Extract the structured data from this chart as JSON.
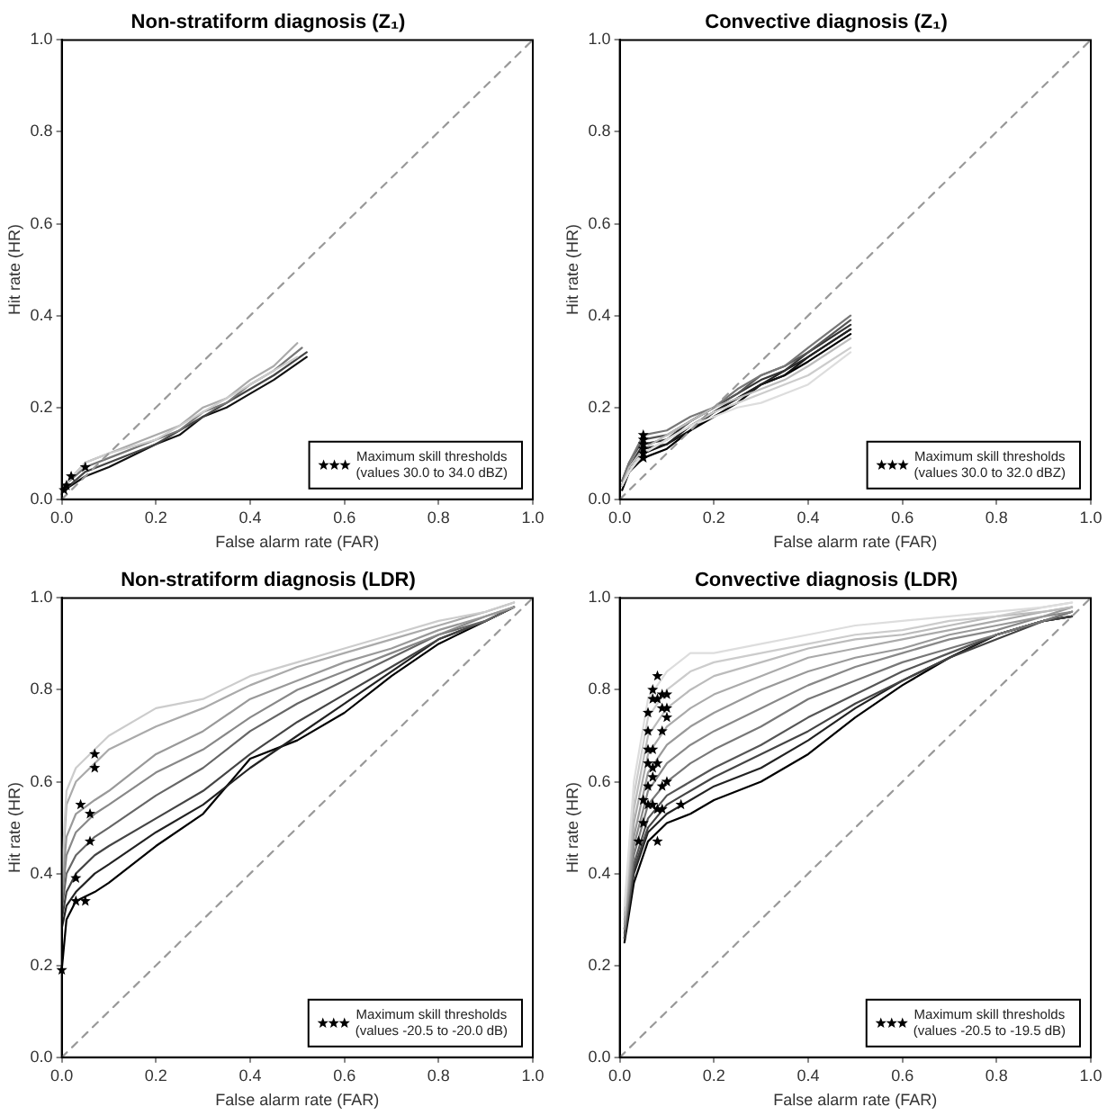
{
  "chart_data": [
    {
      "type": "line",
      "title": "Non-stratiform diagnosis (Z₁)",
      "xlabel": "False alarm rate (FAR)",
      "ylabel": "Hit rate (HR)",
      "xlim": [
        0,
        1
      ],
      "ylim": [
        0,
        1
      ],
      "xticks": [
        {
          "value": 0,
          "label": "0.0"
        },
        {
          "value": 0.2,
          "label": "0.2"
        },
        {
          "value": 0.4,
          "label": "0.4"
        },
        {
          "value": 0.6,
          "label": "0.6"
        },
        {
          "value": 0.8,
          "label": "0.8"
        },
        {
          "value": 1,
          "label": "1.0"
        }
      ],
      "yticks": [
        {
          "value": 0,
          "label": "0.0"
        },
        {
          "value": 0.2,
          "label": "0.2"
        },
        {
          "value": 0.4,
          "label": "0.4"
        },
        {
          "value": 0.6,
          "label": "0.6"
        },
        {
          "value": 0.8,
          "label": "0.8"
        },
        {
          "value": 1,
          "label": "1.0"
        }
      ],
      "grid": false,
      "legend": "bottom right",
      "series": [
        {
          "type": "line",
          "color": "#999999",
          "line_style": "dashed",
          "x": [
            0,
            1
          ],
          "values": [
            0,
            1
          ]
        },
        {
          "type": "line",
          "color": "#cccccc",
          "x": [
            0.005,
            0.05,
            0.1,
            0.2,
            0.25,
            0.3,
            0.35,
            0.4,
            0.45,
            0.5
          ],
          "values": [
            0.03,
            0.08,
            0.1,
            0.13,
            0.16,
            0.19,
            0.22,
            0.25,
            0.28,
            0.31
          ]
        },
        {
          "type": "line",
          "color": "#aaaaaa",
          "x": [
            0.005,
            0.05,
            0.1,
            0.2,
            0.25,
            0.3,
            0.35,
            0.4,
            0.45,
            0.5
          ],
          "values": [
            0.03,
            0.08,
            0.1,
            0.14,
            0.16,
            0.2,
            0.22,
            0.26,
            0.29,
            0.34
          ]
        },
        {
          "type": "line",
          "color": "#777777",
          "x": [
            0.005,
            0.05,
            0.1,
            0.2,
            0.25,
            0.3,
            0.35,
            0.4,
            0.45,
            0.51
          ],
          "values": [
            0.03,
            0.07,
            0.09,
            0.13,
            0.15,
            0.19,
            0.21,
            0.25,
            0.28,
            0.33
          ]
        },
        {
          "type": "line",
          "color": "#444444",
          "x": [
            0.005,
            0.05,
            0.1,
            0.2,
            0.25,
            0.3,
            0.35,
            0.4,
            0.45,
            0.52
          ],
          "values": [
            0.02,
            0.06,
            0.08,
            0.12,
            0.15,
            0.18,
            0.21,
            0.24,
            0.27,
            0.32
          ]
        },
        {
          "type": "line",
          "color": "#111111",
          "x": [
            0.005,
            0.05,
            0.1,
            0.2,
            0.25,
            0.3,
            0.35,
            0.4,
            0.45,
            0.52
          ],
          "values": [
            0.02,
            0.05,
            0.07,
            0.12,
            0.14,
            0.18,
            0.2,
            0.23,
            0.26,
            0.31
          ]
        },
        {
          "type": "scatter",
          "name": "Maximum skill thresholds (values 30.0 to 34.0 dBZ)",
          "color": "#000000",
          "marker": "star",
          "x": [
            0.005,
            0.01,
            0.02,
            0.05
          ],
          "values": [
            0.02,
            0.03,
            0.05,
            0.07
          ]
        }
      ]
    },
    {
      "type": "line",
      "title": "Convective diagnosis (Z₁)",
      "xlabel": "False alarm rate (FAR)",
      "ylabel": "Hit rate (HR)",
      "xlim": [
        0,
        1
      ],
      "ylim": [
        0,
        1
      ],
      "xticks": [
        {
          "value": 0,
          "label": "0.0"
        },
        {
          "value": 0.2,
          "label": "0.2"
        },
        {
          "value": 0.4,
          "label": "0.4"
        },
        {
          "value": 0.6,
          "label": "0.6"
        },
        {
          "value": 0.8,
          "label": "0.8"
        },
        {
          "value": 1,
          "label": "1.0"
        }
      ],
      "yticks": [
        {
          "value": 0,
          "label": "0.0"
        },
        {
          "value": 0.2,
          "label": "0.2"
        },
        {
          "value": 0.4,
          "label": "0.4"
        },
        {
          "value": 0.6,
          "label": "0.6"
        },
        {
          "value": 0.8,
          "label": "0.8"
        },
        {
          "value": 1,
          "label": "1.0"
        }
      ],
      "grid": false,
      "legend": "bottom right",
      "series": [
        {
          "type": "line",
          "color": "#999999",
          "line_style": "dashed",
          "x": [
            0,
            1
          ],
          "values": [
            0,
            1
          ]
        },
        {
          "type": "line",
          "color": "#dddddd",
          "x": [
            0.005,
            0.02,
            0.05,
            0.1,
            0.15,
            0.2,
            0.25,
            0.3,
            0.35,
            0.4,
            0.49
          ],
          "values": [
            0.03,
            0.06,
            0.1,
            0.13,
            0.16,
            0.18,
            0.2,
            0.21,
            0.23,
            0.25,
            0.32
          ]
        },
        {
          "type": "line",
          "color": "#cccccc",
          "x": [
            0.005,
            0.02,
            0.05,
            0.1,
            0.15,
            0.2,
            0.25,
            0.3,
            0.35,
            0.4,
            0.49
          ],
          "values": [
            0.03,
            0.06,
            0.1,
            0.13,
            0.16,
            0.19,
            0.21,
            0.23,
            0.25,
            0.27,
            0.33
          ]
        },
        {
          "type": "line",
          "color": "#bbbbbb",
          "x": [
            0.005,
            0.02,
            0.05,
            0.1,
            0.15,
            0.2,
            0.25,
            0.3,
            0.35,
            0.4,
            0.49
          ],
          "values": [
            0.03,
            0.07,
            0.11,
            0.14,
            0.17,
            0.2,
            0.22,
            0.24,
            0.26,
            0.29,
            0.35
          ]
        },
        {
          "type": "line",
          "color": "#777777",
          "x": [
            0.005,
            0.02,
            0.05,
            0.1,
            0.15,
            0.2,
            0.25,
            0.3,
            0.35,
            0.4,
            0.49
          ],
          "values": [
            0.04,
            0.08,
            0.14,
            0.15,
            0.18,
            0.2,
            0.24,
            0.27,
            0.29,
            0.33,
            0.4
          ]
        },
        {
          "type": "line",
          "color": "#555555",
          "x": [
            0.005,
            0.02,
            0.05,
            0.1,
            0.15,
            0.2,
            0.25,
            0.3,
            0.35,
            0.4,
            0.49
          ],
          "values": [
            0.04,
            0.08,
            0.13,
            0.14,
            0.17,
            0.2,
            0.23,
            0.27,
            0.29,
            0.32,
            0.39
          ]
        },
        {
          "type": "line",
          "color": "#333333",
          "x": [
            0.005,
            0.02,
            0.05,
            0.1,
            0.15,
            0.2,
            0.25,
            0.3,
            0.35,
            0.4,
            0.49
          ],
          "values": [
            0.03,
            0.07,
            0.12,
            0.13,
            0.17,
            0.2,
            0.23,
            0.26,
            0.28,
            0.32,
            0.38
          ]
        },
        {
          "type": "line",
          "color": "#222222",
          "x": [
            0.005,
            0.02,
            0.05,
            0.1,
            0.15,
            0.2,
            0.25,
            0.3,
            0.35,
            0.4,
            0.49
          ],
          "values": [
            0.03,
            0.07,
            0.11,
            0.12,
            0.16,
            0.19,
            0.22,
            0.25,
            0.28,
            0.31,
            0.37
          ]
        },
        {
          "type": "line",
          "color": "#111111",
          "x": [
            0.005,
            0.02,
            0.05,
            0.1,
            0.15,
            0.2,
            0.25,
            0.3,
            0.35,
            0.4,
            0.49
          ],
          "values": [
            0.03,
            0.06,
            0.1,
            0.12,
            0.15,
            0.19,
            0.22,
            0.25,
            0.27,
            0.31,
            0.37
          ]
        },
        {
          "type": "line",
          "color": "#000000",
          "x": [
            0.005,
            0.02,
            0.05,
            0.1,
            0.15,
            0.2,
            0.25,
            0.3,
            0.35,
            0.4,
            0.49
          ],
          "values": [
            0.02,
            0.06,
            0.09,
            0.11,
            0.15,
            0.18,
            0.21,
            0.25,
            0.27,
            0.3,
            0.36
          ]
        },
        {
          "type": "scatter",
          "name": "Maximum skill thresholds (values 30.0 to 32.0 dBZ)",
          "color": "#000000",
          "marker": "star",
          "x": [
            0.05,
            0.05,
            0.05,
            0.05,
            0.05,
            0.05
          ],
          "values": [
            0.09,
            0.1,
            0.11,
            0.12,
            0.13,
            0.14
          ]
        }
      ]
    },
    {
      "type": "line",
      "title": "Non-stratiform diagnosis (LDR)",
      "xlabel": "False alarm rate (FAR)",
      "ylabel": "Hit rate (HR)",
      "xlim": [
        0,
        1
      ],
      "ylim": [
        0,
        1
      ],
      "xticks": [
        {
          "value": 0,
          "label": "0.0"
        },
        {
          "value": 0.2,
          "label": "0.2"
        },
        {
          "value": 0.4,
          "label": "0.4"
        },
        {
          "value": 0.6,
          "label": "0.6"
        },
        {
          "value": 0.8,
          "label": "0.8"
        },
        {
          "value": 1,
          "label": "1.0"
        }
      ],
      "yticks": [
        {
          "value": 0,
          "label": "0.0"
        },
        {
          "value": 0.2,
          "label": "0.2"
        },
        {
          "value": 0.4,
          "label": "0.4"
        },
        {
          "value": 0.6,
          "label": "0.6"
        },
        {
          "value": 0.8,
          "label": "0.8"
        },
        {
          "value": 1,
          "label": "1.0"
        }
      ],
      "grid": false,
      "legend": "bottom right",
      "series": [
        {
          "type": "line",
          "color": "#999999",
          "line_style": "dashed",
          "x": [
            0,
            1
          ],
          "values": [
            0,
            1
          ]
        },
        {
          "type": "line",
          "color": "#cccccc",
          "x": [
            0,
            0.01,
            0.03,
            0.07,
            0.1,
            0.2,
            0.3,
            0.4,
            0.5,
            0.6,
            0.7,
            0.8,
            0.9,
            0.96
          ],
          "values": [
            0.4,
            0.58,
            0.63,
            0.67,
            0.7,
            0.76,
            0.78,
            0.83,
            0.86,
            0.89,
            0.92,
            0.95,
            0.97,
            0.99
          ]
        },
        {
          "type": "line",
          "color": "#aaaaaa",
          "x": [
            0,
            0.01,
            0.03,
            0.07,
            0.1,
            0.2,
            0.3,
            0.4,
            0.5,
            0.6,
            0.7,
            0.8,
            0.9,
            0.96
          ],
          "values": [
            0.38,
            0.55,
            0.6,
            0.64,
            0.67,
            0.72,
            0.76,
            0.81,
            0.85,
            0.88,
            0.91,
            0.94,
            0.97,
            0.99
          ]
        },
        {
          "type": "line",
          "color": "#999999",
          "x": [
            0,
            0.01,
            0.03,
            0.07,
            0.1,
            0.2,
            0.3,
            0.4,
            0.5,
            0.6,
            0.7,
            0.8,
            0.9,
            0.96
          ],
          "values": [
            0.36,
            0.48,
            0.53,
            0.56,
            0.58,
            0.66,
            0.71,
            0.78,
            0.82,
            0.86,
            0.89,
            0.93,
            0.96,
            0.98
          ]
        },
        {
          "type": "line",
          "color": "#888888",
          "x": [
            0,
            0.01,
            0.03,
            0.07,
            0.1,
            0.2,
            0.3,
            0.4,
            0.5,
            0.6,
            0.7,
            0.8,
            0.9,
            0.96
          ],
          "values": [
            0.34,
            0.44,
            0.49,
            0.53,
            0.55,
            0.62,
            0.67,
            0.74,
            0.8,
            0.84,
            0.88,
            0.92,
            0.96,
            0.98
          ]
        },
        {
          "type": "line",
          "color": "#666666",
          "x": [
            0,
            0.01,
            0.03,
            0.07,
            0.1,
            0.2,
            0.3,
            0.4,
            0.5,
            0.6,
            0.7,
            0.8,
            0.9,
            0.96
          ],
          "values": [
            0.32,
            0.4,
            0.44,
            0.48,
            0.5,
            0.57,
            0.63,
            0.71,
            0.77,
            0.82,
            0.87,
            0.92,
            0.95,
            0.98
          ]
        },
        {
          "type": "line",
          "color": "#444444",
          "x": [
            0,
            0.01,
            0.03,
            0.07,
            0.1,
            0.2,
            0.3,
            0.4,
            0.5,
            0.6,
            0.7,
            0.8,
            0.9,
            0.96
          ],
          "values": [
            0.3,
            0.36,
            0.4,
            0.44,
            0.46,
            0.52,
            0.58,
            0.66,
            0.73,
            0.79,
            0.85,
            0.91,
            0.95,
            0.98
          ]
        },
        {
          "type": "line",
          "color": "#222222",
          "x": [
            0,
            0.01,
            0.03,
            0.07,
            0.1,
            0.2,
            0.3,
            0.4,
            0.5,
            0.6,
            0.7,
            0.8,
            0.9,
            0.96
          ],
          "values": [
            0.28,
            0.33,
            0.36,
            0.4,
            0.42,
            0.49,
            0.55,
            0.63,
            0.7,
            0.77,
            0.84,
            0.91,
            0.95,
            0.98
          ]
        },
        {
          "type": "line",
          "color": "#000000",
          "x": [
            0,
            0.01,
            0.03,
            0.07,
            0.1,
            0.2,
            0.3,
            0.4,
            0.5,
            0.6,
            0.7,
            0.8,
            0.9,
            0.96
          ],
          "values": [
            0.19,
            0.3,
            0.34,
            0.36,
            0.38,
            0.46,
            0.53,
            0.65,
            0.69,
            0.75,
            0.83,
            0.9,
            0.95,
            0.98
          ]
        },
        {
          "type": "scatter",
          "name": "Maximum skill thresholds (values -20.5 to -20.0 dB)",
          "color": "#000000",
          "marker": "star",
          "x": [
            0.07,
            0.07,
            0.04,
            0.06,
            0.06,
            0.03,
            0.03,
            0.05,
            0
          ],
          "values": [
            0.66,
            0.63,
            0.55,
            0.53,
            0.47,
            0.39,
            0.34,
            0.34,
            0.19
          ]
        }
      ]
    },
    {
      "type": "line",
      "title": "Convective diagnosis (LDR)",
      "xlabel": "False alarm rate (FAR)",
      "ylabel": "Hit rate (HR)",
      "xlim": [
        0,
        1
      ],
      "ylim": [
        0,
        1
      ],
      "xticks": [
        {
          "value": 0,
          "label": "0.0"
        },
        {
          "value": 0.2,
          "label": "0.2"
        },
        {
          "value": 0.4,
          "label": "0.4"
        },
        {
          "value": 0.6,
          "label": "0.6"
        },
        {
          "value": 0.8,
          "label": "0.8"
        },
        {
          "value": 1,
          "label": "1.0"
        }
      ],
      "yticks": [
        {
          "value": 0,
          "label": "0.0"
        },
        {
          "value": 0.2,
          "label": "0.2"
        },
        {
          "value": 0.4,
          "label": "0.4"
        },
        {
          "value": 0.6,
          "label": "0.6"
        },
        {
          "value": 0.8,
          "label": "0.8"
        },
        {
          "value": 1,
          "label": "1.0"
        }
      ],
      "grid": false,
      "legend": "bottom right",
      "series": [
        {
          "type": "line",
          "color": "#999999",
          "line_style": "dashed",
          "x": [
            0,
            1
          ],
          "values": [
            0,
            1
          ]
        },
        {
          "type": "line",
          "color": "#dddddd",
          "x": [
            0.01,
            0.03,
            0.06,
            0.1,
            0.15,
            0.2,
            0.3,
            0.4,
            0.5,
            0.6,
            0.7,
            0.8,
            0.9,
            0.96
          ],
          "values": [
            0.33,
            0.6,
            0.78,
            0.84,
            0.88,
            0.88,
            0.9,
            0.92,
            0.94,
            0.95,
            0.96,
            0.97,
            0.98,
            0.99
          ]
        },
        {
          "type": "line",
          "color": "#cccccc",
          "x": [
            0.01,
            0.03,
            0.06,
            0.1,
            0.15,
            0.2,
            0.3,
            0.4,
            0.5,
            0.6,
            0.7,
            0.8,
            0.9,
            0.96
          ],
          "values": [
            0.32,
            0.57,
            0.74,
            0.8,
            0.84,
            0.86,
            0.88,
            0.9,
            0.92,
            0.93,
            0.95,
            0.96,
            0.98,
            0.99
          ]
        },
        {
          "type": "line",
          "color": "#bbbbbb",
          "x": [
            0.01,
            0.03,
            0.06,
            0.1,
            0.15,
            0.2,
            0.3,
            0.4,
            0.5,
            0.6,
            0.7,
            0.8,
            0.9,
            0.96
          ],
          "values": [
            0.31,
            0.54,
            0.7,
            0.76,
            0.8,
            0.83,
            0.86,
            0.89,
            0.91,
            0.92,
            0.94,
            0.96,
            0.97,
            0.98
          ]
        },
        {
          "type": "line",
          "color": "#aaaaaa",
          "x": [
            0.01,
            0.03,
            0.06,
            0.1,
            0.15,
            0.2,
            0.3,
            0.4,
            0.5,
            0.6,
            0.7,
            0.8,
            0.9,
            0.96
          ],
          "values": [
            0.3,
            0.51,
            0.66,
            0.72,
            0.76,
            0.79,
            0.83,
            0.87,
            0.89,
            0.91,
            0.93,
            0.95,
            0.97,
            0.98
          ]
        },
        {
          "type": "line",
          "color": "#999999",
          "x": [
            0.01,
            0.03,
            0.06,
            0.1,
            0.15,
            0.2,
            0.3,
            0.4,
            0.5,
            0.6,
            0.7,
            0.8,
            0.9,
            0.96
          ],
          "values": [
            0.29,
            0.48,
            0.62,
            0.68,
            0.72,
            0.75,
            0.8,
            0.84,
            0.87,
            0.89,
            0.92,
            0.94,
            0.96,
            0.98
          ]
        },
        {
          "type": "line",
          "color": "#888888",
          "x": [
            0.01,
            0.03,
            0.06,
            0.1,
            0.15,
            0.2,
            0.3,
            0.4,
            0.5,
            0.6,
            0.7,
            0.8,
            0.9,
            0.96
          ],
          "values": [
            0.28,
            0.46,
            0.58,
            0.64,
            0.68,
            0.71,
            0.76,
            0.81,
            0.85,
            0.88,
            0.91,
            0.93,
            0.96,
            0.97
          ]
        },
        {
          "type": "line",
          "color": "#777777",
          "x": [
            0.01,
            0.03,
            0.06,
            0.1,
            0.15,
            0.2,
            0.3,
            0.4,
            0.5,
            0.6,
            0.7,
            0.8,
            0.9,
            0.96
          ],
          "values": [
            0.28,
            0.44,
            0.55,
            0.6,
            0.64,
            0.67,
            0.72,
            0.78,
            0.82,
            0.86,
            0.89,
            0.92,
            0.95,
            0.97
          ]
        },
        {
          "type": "line",
          "color": "#555555",
          "x": [
            0.01,
            0.03,
            0.06,
            0.1,
            0.15,
            0.2,
            0.3,
            0.4,
            0.5,
            0.6,
            0.7,
            0.8,
            0.9,
            0.96
          ],
          "values": [
            0.27,
            0.42,
            0.52,
            0.57,
            0.6,
            0.63,
            0.68,
            0.74,
            0.79,
            0.84,
            0.88,
            0.92,
            0.95,
            0.97
          ]
        },
        {
          "type": "line",
          "color": "#444444",
          "x": [
            0.01,
            0.03,
            0.06,
            0.1,
            0.15,
            0.2,
            0.3,
            0.4,
            0.5,
            0.6,
            0.7,
            0.8,
            0.9,
            0.96
          ],
          "values": [
            0.26,
            0.41,
            0.5,
            0.55,
            0.58,
            0.61,
            0.66,
            0.71,
            0.77,
            0.82,
            0.87,
            0.91,
            0.95,
            0.96
          ]
        },
        {
          "type": "line",
          "color": "#222222",
          "x": [
            0.01,
            0.03,
            0.06,
            0.1,
            0.15,
            0.2,
            0.3,
            0.4,
            0.5,
            0.6,
            0.7,
            0.8,
            0.9,
            0.96
          ],
          "values": [
            0.26,
            0.4,
            0.49,
            0.53,
            0.56,
            0.59,
            0.63,
            0.69,
            0.76,
            0.82,
            0.87,
            0.92,
            0.95,
            0.96
          ]
        },
        {
          "type": "line",
          "color": "#000000",
          "x": [
            0.01,
            0.03,
            0.06,
            0.1,
            0.15,
            0.2,
            0.3,
            0.4,
            0.5,
            0.6,
            0.7,
            0.8,
            0.9,
            0.96
          ],
          "values": [
            0.25,
            0.38,
            0.47,
            0.51,
            0.53,
            0.56,
            0.6,
            0.66,
            0.74,
            0.81,
            0.87,
            0.92,
            0.95,
            0.96
          ]
        },
        {
          "type": "scatter",
          "name": "Maximum skill thresholds (values -20.5 to -19.5 dB)",
          "color": "#000000",
          "marker": "star",
          "x": [
            0.08,
            0.07,
            0.07,
            0.08,
            0.09,
            0.1,
            0.06,
            0.09,
            0.1,
            0.1,
            0.09,
            0.06,
            0.06,
            0.07,
            0.06,
            0.07,
            0.08,
            0.07,
            0.1,
            0.09,
            0.06,
            0.05,
            0.06,
            0.07,
            0.08,
            0.09,
            0.13,
            0.05,
            0.08,
            0.04
          ],
          "values": [
            0.83,
            0.8,
            0.78,
            0.78,
            0.79,
            0.79,
            0.75,
            0.76,
            0.76,
            0.74,
            0.71,
            0.71,
            0.67,
            0.67,
            0.64,
            0.63,
            0.64,
            0.61,
            0.6,
            0.59,
            0.59,
            0.56,
            0.55,
            0.55,
            0.54,
            0.54,
            0.55,
            0.51,
            0.47,
            0.47
          ]
        }
      ]
    }
  ]
}
